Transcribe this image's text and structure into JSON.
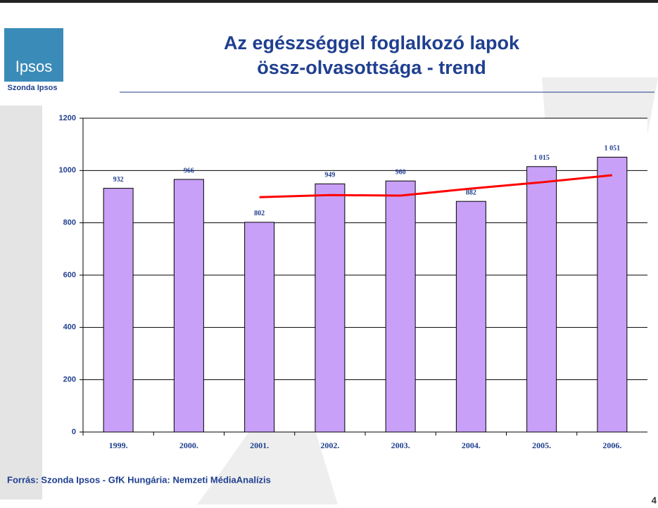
{
  "logo": "Ipsos",
  "brand": "Szonda Ipsos",
  "source": "Forrás: Szonda Ipsos - GfK Hungária: Nemzeti MédiaAnalízis",
  "page_number": 4,
  "chart_data": {
    "type": "bar",
    "title": [
      "Az egészséggel foglalkozó lapok",
      "össz-olvasottsága - trend"
    ],
    "categories": [
      "1999.",
      "2000.",
      "2001.",
      "2002.",
      "2003.",
      "2004.",
      "2005.",
      "2006."
    ],
    "series": [
      {
        "type": "bar",
        "color": "#c8a0f8",
        "values": [
          932,
          966,
          802,
          949,
          960,
          882,
          1015,
          1051
        ],
        "value_labels": [
          "932",
          "966",
          "802",
          "949",
          "960",
          "882",
          "1 015",
          "1 051"
        ]
      },
      {
        "type": "line",
        "color": "#ff0000",
        "values": [
          null,
          null,
          898,
          906,
          904,
          931,
          955,
          982
        ]
      }
    ],
    "ylim": [
      0,
      1200
    ],
    "yticks": [
      0,
      200,
      400,
      600,
      800,
      1000,
      1200
    ],
    "grid": true
  }
}
